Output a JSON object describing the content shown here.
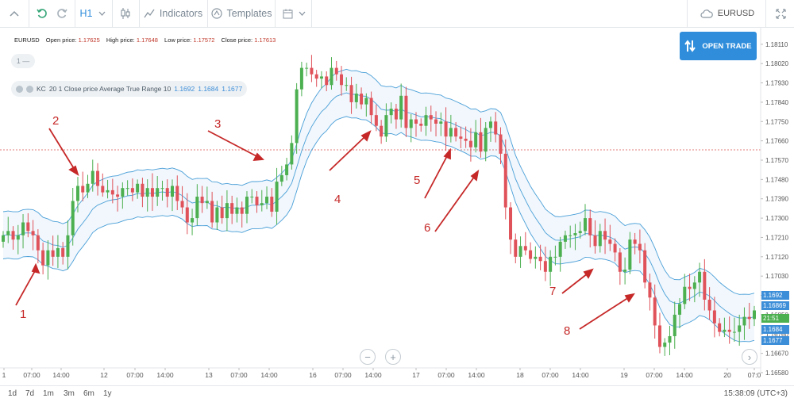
{
  "toolbar": {
    "timeframe": "H1",
    "indicators_label": "Indicators",
    "templates_label": "Templates",
    "symbol": "EURUSD"
  },
  "ohlc": {
    "symbol": "EURUSD",
    "open_label": "Open price:",
    "open": "1.17625",
    "high_label": "High price:",
    "high": "1.17648",
    "low_label": "Low price:",
    "low": "1.17572",
    "close_label": "Close price:",
    "close": "1.17613"
  },
  "zoom_chip": "1 —",
  "indicator": {
    "name": "KC",
    "params": "20 1 Close price Average True Range 10",
    "v1": "1.1692",
    "v2": "1.1684",
    "v3": "1.1677"
  },
  "open_trade_label": "OPEN TRADE",
  "price_axis": [
    "1.18110",
    "1.18020",
    "1.17930",
    "1.17840",
    "1.17750",
    "1.17660",
    "1.17570",
    "1.17480",
    "1.17390",
    "1.17300",
    "1.17210",
    "1.17120",
    "1.17030",
    "1.16940",
    "1.16850",
    "1.16760",
    "1.16670",
    "1.16580"
  ],
  "price_tags": {
    "kc_upper": "1.1692",
    "last_price": "1.16869",
    "countdown": "21:51",
    "kc_mid": "1.1684",
    "kc_lower": "1.1677"
  },
  "time_axis": [
    "1",
    "07:00",
    "14:00",
    "12",
    "07:00",
    "14:00",
    "13",
    "07:00",
    "14:00",
    "16",
    "07:00",
    "14:00",
    "17",
    "07:00",
    "14:00",
    "18",
    "07:00",
    "14:00",
    "19",
    "07:00",
    "14:00",
    "20",
    "07:0"
  ],
  "annotations": [
    "1",
    "2",
    "3",
    "4",
    "5",
    "6",
    "7",
    "8"
  ],
  "ranges": [
    "1d",
    "7d",
    "1m",
    "3m",
    "6m",
    "1y"
  ],
  "clock": "15:38:09 (UTC+3)",
  "colors": {
    "up": "#4caf50",
    "down": "#e0525a",
    "band": "#4a9fd8",
    "accent": "#2f8ddb",
    "arrow": "#c62828"
  },
  "chart_data": {
    "type": "candlestick",
    "ylim": [
      1.1658,
      1.1815
    ],
    "closes": [
      1.1722,
      1.1724,
      1.172,
      1.1722,
      1.1728,
      1.1724,
      1.1722,
      1.1715,
      1.1708,
      1.1715,
      1.1712,
      1.1716,
      1.1712,
      1.1722,
      1.1738,
      1.1745,
      1.1742,
      1.1746,
      1.1752,
      1.1745,
      1.1742,
      1.1743,
      1.1741,
      1.174,
      1.1744,
      1.1744,
      1.1742,
      1.1746,
      1.174,
      1.1744,
      1.174,
      1.1744,
      1.1744,
      1.174,
      1.1745,
      1.1738,
      1.1735,
      1.1728,
      1.173,
      1.174,
      1.1737,
      1.1738,
      1.1728,
      1.1735,
      1.173,
      1.1737,
      1.1732,
      1.1735,
      1.1732,
      1.174,
      1.174,
      1.1736,
      1.1737,
      1.174,
      1.1733,
      1.1747,
      1.175,
      1.1755,
      1.1765,
      1.179,
      1.18,
      1.18,
      1.1797,
      1.1795,
      1.1796,
      1.1792,
      1.18,
      1.1797,
      1.1792,
      1.1792,
      1.1784,
      1.1788,
      1.1783,
      1.1786,
      1.1778,
      1.1773,
      1.1768,
      1.1778,
      1.1781,
      1.1776,
      1.1787,
      1.1772,
      1.1776,
      1.1774,
      1.1773,
      1.1778,
      1.1776,
      1.1774,
      1.1775,
      1.1768,
      1.1772,
      1.1768,
      1.1767,
      1.1766,
      1.1763,
      1.177,
      1.1761,
      1.1772,
      1.1775,
      1.1769,
      1.176,
      1.1735,
      1.172,
      1.1712,
      1.1717,
      1.1715,
      1.1711,
      1.1712,
      1.171,
      1.1705,
      1.1712,
      1.1712,
      1.1719,
      1.1722,
      1.1722,
      1.1723,
      1.1724,
      1.173,
      1.1722,
      1.1717,
      1.1724,
      1.172,
      1.1718,
      1.1714,
      1.1705,
      1.1706,
      1.172,
      1.1718,
      1.1715,
      1.17,
      1.1693,
      1.168,
      1.167,
      1.1672,
      1.1675,
      1.1685,
      1.169,
      1.1698,
      1.1697,
      1.17,
      1.1705,
      1.1692,
      1.1687,
      1.1681,
      1.1677,
      1.1678,
      1.1677,
      1.1677,
      1.168,
      1.1684,
      1.1683,
      1.1687
    ]
  }
}
